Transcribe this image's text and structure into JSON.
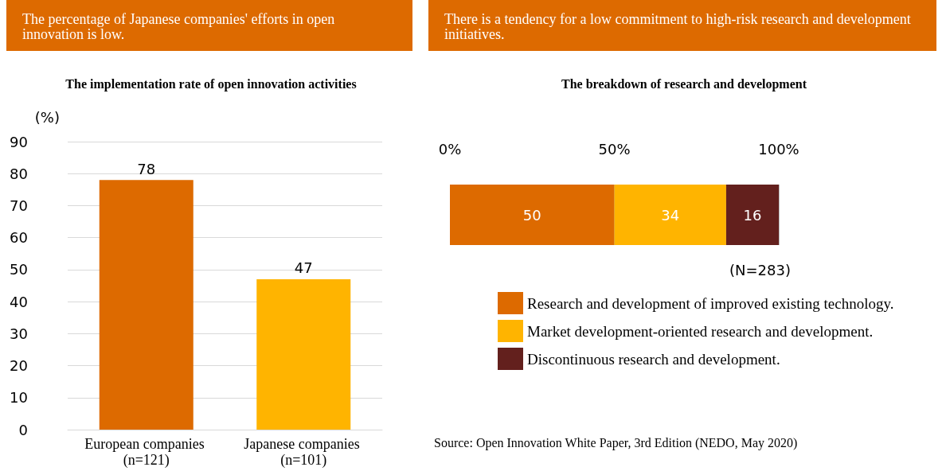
{
  "chart_data": [
    {
      "type": "bar",
      "subtitle": "The percentage of Japanese companies' efforts in open innovation is low.",
      "title": "The implementation rate of open innovation activities",
      "ylabel": "(%)",
      "categories": [
        "European companies (n=121)",
        "Japanese companies (n=101)"
      ],
      "values": [
        78,
        47
      ],
      "colors": [
        "#dd6a00",
        "#ffb400"
      ],
      "ylim": [
        0,
        90
      ],
      "yticks": [
        0,
        10,
        20,
        30,
        40,
        50,
        60,
        70,
        80,
        90
      ],
      "grid": "y",
      "data_labels": true
    },
    {
      "type": "bar",
      "orientation": "horizontal",
      "stacked": true,
      "subtitle": "There is a tendency for a low commitment to high-risk research and development initiatives.",
      "title": "The breakdown of research and development",
      "categories": [
        null
      ],
      "series": [
        {
          "name": "Research and development of improved existing technology.",
          "color": "#dd6a00",
          "values": [
            50
          ]
        },
        {
          "name": "Market development-oriented research and development.",
          "color": "#ffb400",
          "values": [
            34
          ]
        },
        {
          "name": "Discontinuous research and development.",
          "color": "#63201d",
          "values": [
            16
          ]
        }
      ],
      "xlim": [
        0,
        100
      ],
      "xticks": [
        {
          "value": 0,
          "label": "0%"
        },
        {
          "value": 50,
          "label": "50%"
        },
        {
          "value": 100,
          "label": "100%"
        }
      ],
      "grid": "x",
      "legend": "bottom",
      "data_labels": true,
      "annotations": [
        "(N=283)",
        "Source: Open Innovation White Paper, 3rd Edition (NEDO, May 2020)"
      ]
    }
  ]
}
